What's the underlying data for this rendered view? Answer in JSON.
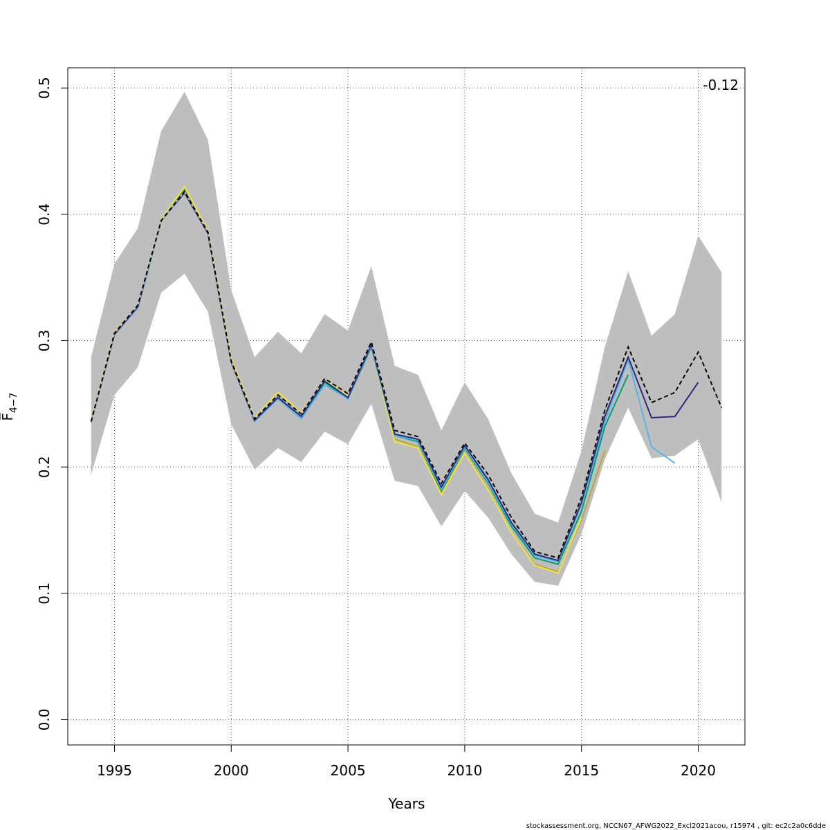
{
  "chart_data": {
    "type": "line",
    "title": "",
    "xlabel": "Years",
    "ylabel": "F̅",
    "ylabel_subscript": "4−7",
    "xlim": [
      1993,
      2022
    ],
    "ylim": [
      -0.02,
      0.516
    ],
    "x_ticks": [
      1995,
      2000,
      2005,
      2010,
      2015,
      2020
    ],
    "x_tick_labels": [
      "1995",
      "2000",
      "2005",
      "2010",
      "2015",
      "2020"
    ],
    "y_ticks": [
      0.0,
      0.1,
      0.2,
      0.3,
      0.4,
      0.5
    ],
    "y_tick_labels": [
      "0.0",
      "0.1",
      "0.2",
      "0.3",
      "0.4",
      "0.5"
    ],
    "grid": true,
    "annotation": "-0.12",
    "footer": "stockassessment.org, NCCN67_AFWG2022_Excl2021acou, r15974 , git: ec2c2a0c6dde",
    "confidence_band": {
      "color": "#bebebe",
      "x": [
        1994,
        1995,
        1996,
        1997,
        1998,
        1999,
        2000,
        2001,
        2002,
        2003,
        2004,
        2005,
        2006,
        2007,
        2008,
        2009,
        2010,
        2011,
        2012,
        2013,
        2014,
        2015,
        2016,
        2017,
        2018,
        2019,
        2020,
        2021
      ],
      "upper": [
        0.287,
        0.361,
        0.389,
        0.466,
        0.497,
        0.459,
        0.34,
        0.287,
        0.307,
        0.29,
        0.321,
        0.308,
        0.359,
        0.28,
        0.273,
        0.229,
        0.267,
        0.238,
        0.195,
        0.163,
        0.156,
        0.213,
        0.295,
        0.355,
        0.304,
        0.321,
        0.383,
        0.354
      ],
      "lower": [
        0.194,
        0.257,
        0.279,
        0.338,
        0.353,
        0.323,
        0.234,
        0.198,
        0.215,
        0.204,
        0.228,
        0.218,
        0.25,
        0.189,
        0.185,
        0.153,
        0.181,
        0.16,
        0.131,
        0.109,
        0.106,
        0.147,
        0.206,
        0.247,
        0.207,
        0.209,
        0.222,
        0.172
      ]
    },
    "series": [
      {
        "color": "#b5a642",
        "x": [
          1994,
          1995,
          1996,
          1997,
          1998,
          1999,
          2000,
          2001,
          2002,
          2003,
          2004,
          2005,
          2006,
          2007,
          2008,
          2009,
          2010,
          2011,
          2012,
          2013,
          2014,
          2015,
          2016
        ],
        "values": [
          0.237,
          0.306,
          0.326,
          0.396,
          0.42,
          0.386,
          0.285,
          0.238,
          0.258,
          0.242,
          0.268,
          0.256,
          0.296,
          0.222,
          0.216,
          0.179,
          0.212,
          0.183,
          0.148,
          0.123,
          0.117,
          0.158,
          0.213
        ]
      },
      {
        "color": "#f0e442",
        "x": [
          1994,
          1995,
          1996,
          1997,
          1998,
          1999,
          2000,
          2001,
          2002,
          2003,
          2004,
          2005,
          2006,
          2007,
          2008,
          2009,
          2010,
          2011,
          2012,
          2013,
          2014,
          2015
        ],
        "values": [
          0.237,
          0.307,
          0.327,
          0.396,
          0.422,
          0.387,
          0.286,
          0.239,
          0.259,
          0.243,
          0.269,
          0.256,
          0.296,
          0.22,
          0.215,
          0.178,
          0.211,
          0.182,
          0.148,
          0.122,
          0.116,
          0.16
        ]
      },
      {
        "color": "#009e73",
        "x": [
          1994,
          1995,
          1996,
          1997,
          1998,
          1999,
          2000,
          2001,
          2002,
          2003,
          2004,
          2005,
          2006,
          2007,
          2008,
          2009,
          2010,
          2011,
          2012,
          2013,
          2014,
          2015,
          2016,
          2017
        ],
        "values": [
          0.236,
          0.305,
          0.326,
          0.395,
          0.419,
          0.385,
          0.283,
          0.237,
          0.255,
          0.24,
          0.267,
          0.254,
          0.295,
          0.225,
          0.22,
          0.181,
          0.215,
          0.187,
          0.153,
          0.128,
          0.123,
          0.165,
          0.232,
          0.273
        ]
      },
      {
        "color": "#56b4e9",
        "x": [
          1994,
          1995,
          1996,
          1997,
          1998,
          1999,
          2000,
          2001,
          2002,
          2003,
          2004,
          2005,
          2006,
          2007,
          2008,
          2009,
          2010,
          2011,
          2012,
          2013,
          2014,
          2015,
          2016,
          2017,
          2018,
          2019
        ],
        "values": [
          0.235,
          0.305,
          0.326,
          0.395,
          0.418,
          0.385,
          0.283,
          0.236,
          0.254,
          0.238,
          0.265,
          0.254,
          0.296,
          0.225,
          0.221,
          0.182,
          0.216,
          0.188,
          0.155,
          0.13,
          0.125,
          0.17,
          0.236,
          0.285,
          0.216,
          0.203
        ]
      },
      {
        "color": "#2e2a7a",
        "x": [
          1994,
          1995,
          1996,
          1997,
          1998,
          1999,
          2000,
          2001,
          2002,
          2003,
          2004,
          2005,
          2006,
          2007,
          2008,
          2009,
          2010,
          2011,
          2012,
          2013,
          2014,
          2015,
          2016,
          2017,
          2018,
          2019,
          2020
        ],
        "values": [
          0.236,
          0.305,
          0.327,
          0.395,
          0.417,
          0.385,
          0.283,
          0.237,
          0.255,
          0.24,
          0.268,
          0.255,
          0.297,
          0.226,
          0.222,
          0.184,
          0.217,
          0.19,
          0.156,
          0.131,
          0.126,
          0.172,
          0.24,
          0.287,
          0.239,
          0.24,
          0.267
        ]
      },
      {
        "color": "#000000",
        "dashed": true,
        "x": [
          1994,
          1995,
          1996,
          1997,
          1998,
          1999,
          2000,
          2001,
          2002,
          2003,
          2004,
          2005,
          2006,
          2007,
          2008,
          2009,
          2010,
          2011,
          2012,
          2013,
          2014,
          2015,
          2016,
          2017,
          2018,
          2019,
          2020,
          2021
        ],
        "values": [
          0.236,
          0.306,
          0.328,
          0.395,
          0.418,
          0.386,
          0.284,
          0.238,
          0.257,
          0.242,
          0.27,
          0.258,
          0.299,
          0.229,
          0.224,
          0.187,
          0.219,
          0.194,
          0.16,
          0.133,
          0.128,
          0.176,
          0.245,
          0.295,
          0.251,
          0.259,
          0.291,
          0.247
        ]
      }
    ]
  }
}
